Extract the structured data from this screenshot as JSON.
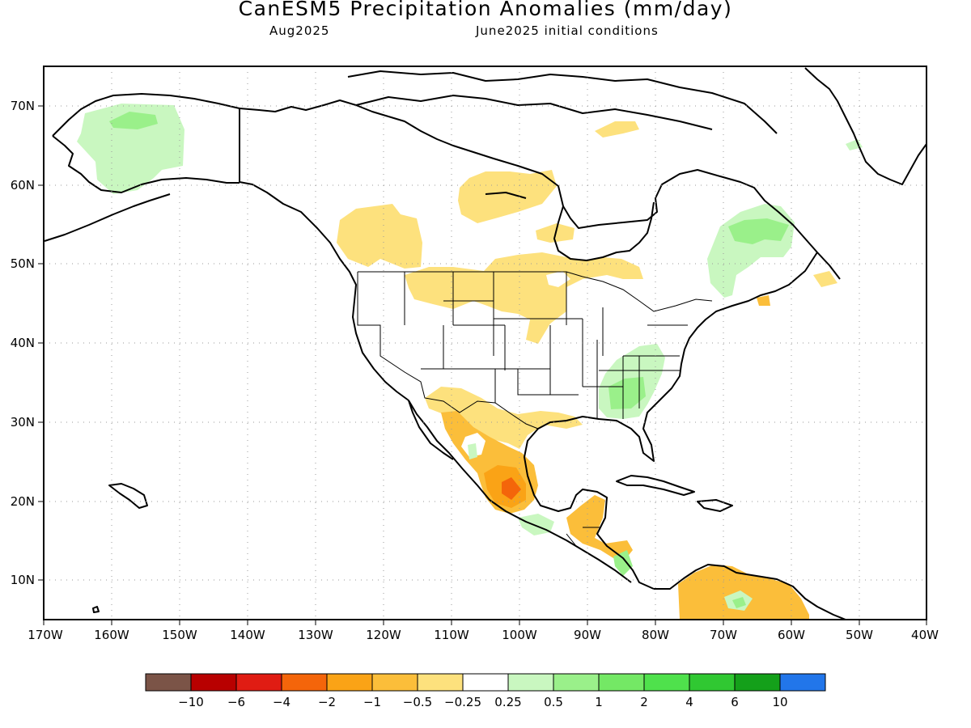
{
  "title": "CanESM5 Precipitation Anomalies (mm/day)",
  "subtitle_left": "Aug2025",
  "subtitle_right": "June2025 initial conditions",
  "map": {
    "lon_ticks": [
      "170W",
      "160W",
      "150W",
      "140W",
      "130W",
      "120W",
      "110W",
      "100W",
      "90W",
      "80W",
      "70W",
      "60W",
      "50W",
      "40W"
    ],
    "lat_ticks": [
      "70N",
      "60N",
      "50N",
      "40N",
      "30N",
      "20N",
      "10N"
    ],
    "gridlines": "dotted"
  },
  "colorbar": {
    "colors": [
      "#7b5447",
      "#b80000",
      "#e01c13",
      "#f4650a",
      "#faa316",
      "#fbbe3a",
      "#fde17d",
      "#ffffff",
      "#c9f7c0",
      "#9af08a",
      "#74e865",
      "#4fe14c",
      "#30c832",
      "#14a01a",
      "#2276ea"
    ],
    "labels": [
      "−10",
      "−6",
      "−4",
      "−2",
      "−1",
      "−0.5",
      "−0.25",
      "0.25",
      "0.5",
      "1",
      "2",
      "4",
      "6",
      "10"
    ]
  },
  "chart_data": {
    "type": "heatmap",
    "title": "CanESM5 Precipitation Anomalies (mm/day)",
    "subtitle": [
      "Aug2025",
      "June2025 initial conditions"
    ],
    "variable": "Precipitation anomaly",
    "units": "mm/day",
    "lon_range": [
      -170,
      -40
    ],
    "lat_range": [
      5,
      75
    ],
    "levels": [
      -10,
      -6,
      -4,
      -2,
      -1,
      -0.5,
      -0.25,
      0.25,
      0.5,
      1,
      2,
      4,
      6,
      10
    ],
    "regions": [
      {
        "area": "Alaska",
        "anomaly_range": [
          0.25,
          1
        ]
      },
      {
        "area": "Central Canada / Hudson Bay west",
        "anomaly_range": [
          -0.5,
          -0.25
        ]
      },
      {
        "area": "British Columbia / Alberta",
        "anomaly_range": [
          -0.5,
          -0.25
        ]
      },
      {
        "area": "Northern Plains / Montana",
        "anomaly_range": [
          -0.5,
          -0.25
        ]
      },
      {
        "area": "Southeastern US",
        "anomaly_range": [
          0.25,
          1
        ]
      },
      {
        "area": "Quebec / Labrador",
        "anomaly_range": [
          0.25,
          1
        ]
      },
      {
        "area": "Central Mexico",
        "anomaly_range": [
          -4,
          -0.25
        ]
      },
      {
        "area": "Central America",
        "anomaly_range": [
          -1,
          -0.25
        ]
      },
      {
        "area": "Northern South America",
        "anomaly_range": [
          -1,
          -0.25
        ]
      }
    ],
    "grid": true,
    "legend": "bottom"
  }
}
